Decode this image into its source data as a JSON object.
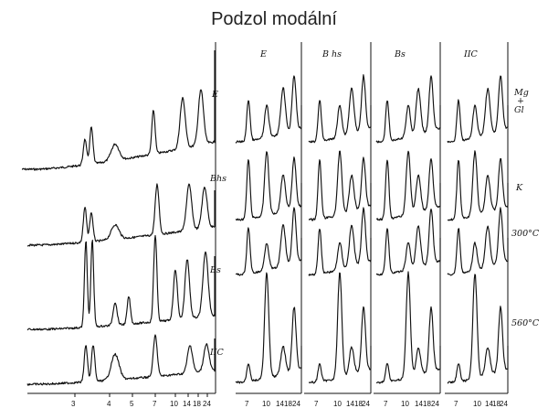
{
  "title": "Podzol modální",
  "left_panel": {
    "horizon_labels": [
      "E",
      "Bhs",
      "Bs",
      "IIC"
    ],
    "axis_ticks": [
      "3",
      "4",
      "5",
      "7",
      "10",
      "14",
      "18",
      "24"
    ]
  },
  "right_panels": [
    {
      "header": "E",
      "ticks": [
        "7",
        "10",
        "14",
        "18",
        "24"
      ]
    },
    {
      "header": "B hs",
      "ticks": [
        "7",
        "10",
        "14",
        "18",
        "24"
      ]
    },
    {
      "header": "Bs",
      "ticks": [
        "7",
        "10",
        "14",
        "18",
        "24"
      ]
    },
    {
      "header": "IIC",
      "ticks": [
        "7",
        "10",
        "14",
        "18",
        "24"
      ]
    }
  ],
  "treatment_labels": {
    "mg_gl": [
      "Mg",
      "+",
      "Gl"
    ],
    "k": "K",
    "t300": "300°C",
    "t560": "560°C"
  },
  "chart_data": {
    "type": "line",
    "title": "Podzol modální",
    "xlabel": "",
    "ylabel": "",
    "panels": [
      {
        "name": "main",
        "x_ticks": [
          "3",
          "4",
          "5",
          "7",
          "10",
          "14",
          "18",
          "24"
        ],
        "series": [
          "E",
          "Bhs",
          "Bs",
          "IIC"
        ]
      },
      {
        "name": "E",
        "x_ticks": [
          "7",
          "10",
          "14",
          "18",
          "24"
        ],
        "series": [
          "Mg + Gl",
          "K",
          "300°C",
          "560°C"
        ]
      },
      {
        "name": "B hs",
        "x_ticks": [
          "7",
          "10",
          "14",
          "18",
          "24"
        ],
        "series": [
          "Mg + Gl",
          "K",
          "300°C",
          "560°C"
        ]
      },
      {
        "name": "Bs",
        "x_ticks": [
          "7",
          "10",
          "14",
          "18",
          "24"
        ],
        "series": [
          "Mg + Gl",
          "K",
          "300°C",
          "560°C"
        ]
      },
      {
        "name": "IIC",
        "x_ticks": [
          "7",
          "10",
          "14",
          "18",
          "24"
        ],
        "series": [
          "Mg + Gl",
          "K",
          "300°C",
          "560°C"
        ]
      }
    ]
  }
}
